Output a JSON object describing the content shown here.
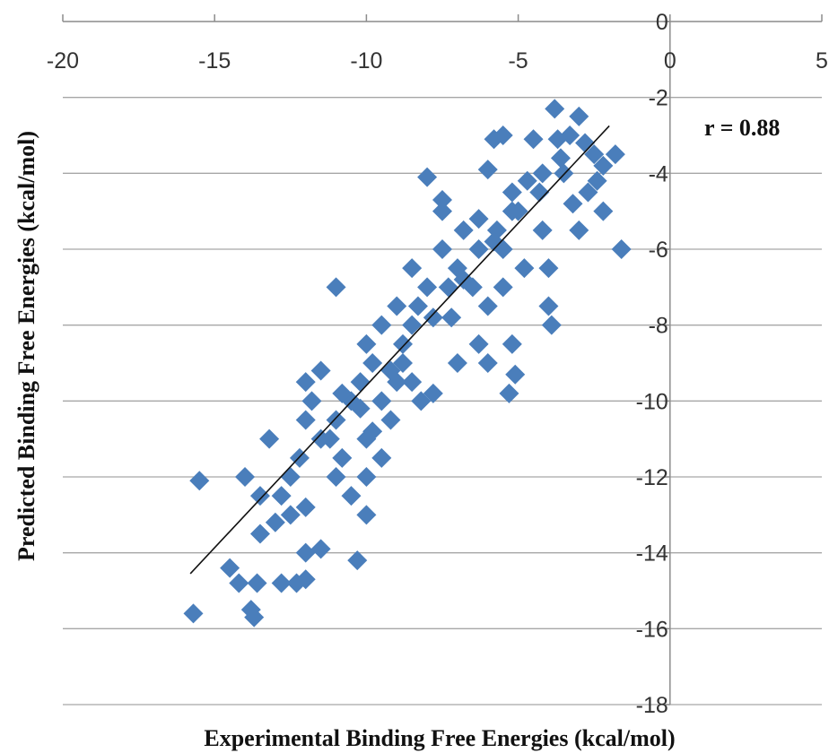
{
  "chart_data": {
    "type": "scatter",
    "title": "",
    "xlabel": "Experimental Binding Free Energies (kcal/mol)",
    "ylabel": "Predicted Binding Free Energies (kcal/mol)",
    "xlim": [
      -20,
      5
    ],
    "ylim": [
      -18,
      0
    ],
    "x_ticks": [
      -20,
      -15,
      -10,
      -5,
      0,
      5
    ],
    "y_ticks": [
      0,
      -2,
      -4,
      -6,
      -8,
      -10,
      -12,
      -14,
      -16,
      -18
    ],
    "x_tick_labels": [
      "-20",
      "-15",
      "-10",
      "-5",
      "0",
      "5"
    ],
    "y_tick_labels": [
      "0",
      "-2",
      "-4",
      "-6",
      "-8",
      "-10",
      "-12",
      "-14",
      "-16",
      "-18"
    ],
    "grid": "horizontal",
    "marker": "diamond",
    "marker_color": "#4a7ebb",
    "annotation": "r = 0.88",
    "trendline": {
      "x": [
        -15.8,
        -2.0
      ],
      "y": [
        -14.55,
        -2.75
      ]
    },
    "points": [
      [
        -15.7,
        -15.6
      ],
      [
        -15.5,
        -12.1
      ],
      [
        -14.5,
        -14.4
      ],
      [
        -14.2,
        -14.8
      ],
      [
        -13.8,
        -15.5
      ],
      [
        -13.7,
        -15.7
      ],
      [
        -13.6,
        -14.8
      ],
      [
        -14.0,
        -12.0
      ],
      [
        -13.5,
        -12.5
      ],
      [
        -13.0,
        -13.2
      ],
      [
        -13.5,
        -13.5
      ],
      [
        -12.8,
        -14.8
      ],
      [
        -12.3,
        -14.8
      ],
      [
        -12.0,
        -14.7
      ],
      [
        -12.5,
        -13.0
      ],
      [
        -12.5,
        -12.0
      ],
      [
        -12.2,
        -11.5
      ],
      [
        -12.0,
        -14.0
      ],
      [
        -11.5,
        -13.9
      ],
      [
        -12.0,
        -10.5
      ],
      [
        -12.0,
        -9.5
      ],
      [
        -11.5,
        -9.2
      ],
      [
        -11.8,
        -10.0
      ],
      [
        -11.5,
        -11.0
      ],
      [
        -11.0,
        -12.0
      ],
      [
        -11.0,
        -7.0
      ],
      [
        -11.0,
        -10.5
      ],
      [
        -10.8,
        -11.5
      ],
      [
        -10.5,
        -12.5
      ],
      [
        -10.3,
        -14.2
      ],
      [
        -10.0,
        -12.0
      ],
      [
        -10.0,
        -13.0
      ],
      [
        -10.5,
        -10.0
      ],
      [
        -10.0,
        -11.0
      ],
      [
        -10.2,
        -9.5
      ],
      [
        -10.0,
        -8.5
      ],
      [
        -9.8,
        -9.0
      ],
      [
        -9.5,
        -8.0
      ],
      [
        -9.5,
        -10.0
      ],
      [
        -9.5,
        -11.5
      ],
      [
        -9.2,
        -10.5
      ],
      [
        -9.0,
        -9.5
      ],
      [
        -9.0,
        -7.5
      ],
      [
        -8.8,
        -8.5
      ],
      [
        -8.5,
        -6.5
      ],
      [
        -8.5,
        -8.0
      ],
      [
        -8.5,
        -9.5
      ],
      [
        -8.2,
        -10.0
      ],
      [
        -8.0,
        -7.0
      ],
      [
        -8.0,
        -4.1
      ],
      [
        -7.8,
        -9.8
      ],
      [
        -7.5,
        -4.7
      ],
      [
        -7.5,
        -5.0
      ],
      [
        -7.5,
        -6.0
      ],
      [
        -7.2,
        -7.8
      ],
      [
        -7.0,
        -9.0
      ],
      [
        -7.0,
        -6.5
      ],
      [
        -6.8,
        -5.5
      ],
      [
        -6.5,
        -7.0
      ],
      [
        -6.3,
        -8.5
      ],
      [
        -6.3,
        -6.0
      ],
      [
        -6.0,
        -3.9
      ],
      [
        -6.0,
        -7.5
      ],
      [
        -6.0,
        -9.0
      ],
      [
        -5.8,
        -3.1
      ],
      [
        -5.7,
        -5.5
      ],
      [
        -5.5,
        -3.0
      ],
      [
        -5.5,
        -6.0
      ],
      [
        -5.5,
        -7.0
      ],
      [
        -5.2,
        -4.5
      ],
      [
        -5.2,
        -8.5
      ],
      [
        -5.1,
        -9.3
      ],
      [
        -5.3,
        -9.8
      ],
      [
        -5.0,
        -5.0
      ],
      [
        -4.8,
        -6.5
      ],
      [
        -4.5,
        -3.1
      ],
      [
        -4.3,
        -4.5
      ],
      [
        -4.2,
        -5.5
      ],
      [
        -4.0,
        -6.5
      ],
      [
        -4.0,
        -7.5
      ],
      [
        -3.9,
        -8.0
      ],
      [
        -3.8,
        -2.3
      ],
      [
        -3.7,
        -3.1
      ],
      [
        -3.5,
        -4.0
      ],
      [
        -3.2,
        -4.8
      ],
      [
        -3.0,
        -2.5
      ],
      [
        -2.8,
        -3.2
      ],
      [
        -2.7,
        -4.5
      ],
      [
        -3.0,
        -5.5
      ],
      [
        -2.5,
        -3.5
      ],
      [
        -2.4,
        -4.2
      ],
      [
        -2.2,
        -3.8
      ],
      [
        -1.8,
        -3.5
      ],
      [
        -1.6,
        -6.0
      ],
      [
        -2.2,
        -5.0
      ],
      [
        -13.2,
        -11.0
      ],
      [
        -12.8,
        -12.5
      ],
      [
        -12.0,
        -12.8
      ],
      [
        -11.2,
        -11.0
      ],
      [
        -10.8,
        -9.8
      ],
      [
        -10.2,
        -10.2
      ],
      [
        -9.8,
        -10.8
      ],
      [
        -9.2,
        -9.2
      ],
      [
        -8.8,
        -9.0
      ],
      [
        -8.3,
        -7.5
      ],
      [
        -7.8,
        -7.8
      ],
      [
        -7.3,
        -7.0
      ],
      [
        -6.8,
        -6.8
      ],
      [
        -6.3,
        -5.2
      ],
      [
        -5.8,
        -5.8
      ],
      [
        -5.2,
        -5.0
      ],
      [
        -4.7,
        -4.2
      ],
      [
        -4.2,
        -4.0
      ],
      [
        -3.6,
        -3.6
      ],
      [
        -3.3,
        -3.0
      ]
    ]
  }
}
